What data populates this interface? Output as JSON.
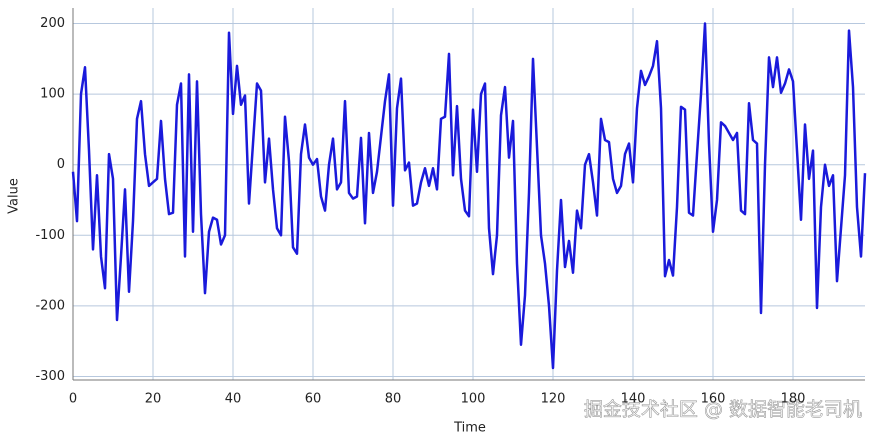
{
  "chart_data": {
    "type": "line",
    "xlabel": "Time",
    "ylabel": "Value",
    "x": [
      0,
      1,
      2,
      3,
      4,
      5,
      6,
      7,
      8,
      9,
      10,
      11,
      12,
      13,
      14,
      15,
      16,
      17,
      18,
      19,
      20,
      21,
      22,
      23,
      24,
      25,
      26,
      27,
      28,
      29,
      30,
      31,
      32,
      33,
      34,
      35,
      36,
      37,
      38,
      39,
      40,
      41,
      42,
      43,
      44,
      45,
      46,
      47,
      48,
      49,
      50,
      51,
      52,
      53,
      54,
      55,
      56,
      57,
      58,
      59,
      60,
      61,
      62,
      63,
      64,
      65,
      66,
      67,
      68,
      69,
      70,
      71,
      72,
      73,
      74,
      75,
      76,
      77,
      78,
      79,
      80,
      81,
      82,
      83,
      84,
      85,
      86,
      87,
      88,
      89,
      90,
      91,
      92,
      93,
      94,
      95,
      96,
      97,
      98,
      99,
      100,
      101,
      102,
      103,
      104,
      105,
      106,
      107,
      108,
      109,
      110,
      111,
      112,
      113,
      114,
      115,
      116,
      117,
      118,
      119,
      120,
      121,
      122,
      123,
      124,
      125,
      126,
      127,
      128,
      129,
      130,
      131,
      132,
      133,
      134,
      135,
      136,
      137,
      138,
      139,
      140,
      141,
      142,
      143,
      144,
      145,
      146,
      147,
      148,
      149,
      150,
      151,
      152,
      153,
      154,
      155,
      156,
      157,
      158,
      159,
      160,
      161,
      162,
      163,
      164,
      165,
      166,
      167,
      168,
      169,
      170,
      171,
      172,
      173,
      174,
      175,
      176,
      177,
      178,
      179,
      180,
      181,
      182,
      183,
      184,
      185,
      186,
      187,
      188,
      189,
      190,
      191,
      192,
      193,
      194,
      195,
      196,
      197,
      198
    ],
    "series": [
      {
        "color": "#1a1adb",
        "values": [
          -10,
          -80,
          100,
          138,
          20,
          -120,
          -15,
          -130,
          -175,
          15,
          -20,
          -220,
          -130,
          -35,
          -180,
          -80,
          65,
          90,
          15,
          -30,
          -25,
          -20,
          62,
          -20,
          -70,
          -68,
          85,
          115,
          -130,
          128,
          -95,
          118,
          -70,
          -182,
          -95,
          -75,
          -78,
          -113,
          -100,
          187,
          72,
          140,
          85,
          98,
          -55,
          30,
          115,
          105,
          -25,
          37,
          -35,
          -90,
          -100,
          68,
          5,
          -117,
          -126,
          15,
          57,
          10,
          0,
          8,
          -45,
          -65,
          0,
          37,
          -35,
          -25,
          90,
          -40,
          -48,
          -45,
          38,
          -83,
          45,
          -40,
          -10,
          40,
          90,
          128,
          -58,
          80,
          122,
          -8,
          3,
          -58,
          -55,
          -25,
          -5,
          -30,
          -5,
          -35,
          65,
          68,
          157,
          -15,
          83,
          -20,
          -65,
          -73,
          78,
          -10,
          100,
          115,
          -90,
          -155,
          -100,
          70,
          110,
          10,
          62,
          -140,
          -255,
          -185,
          -40,
          150,
          25,
          -100,
          -140,
          -200,
          -288,
          -150,
          -50,
          -145,
          -108,
          -153,
          -65,
          -90,
          0,
          15,
          -25,
          -72,
          65,
          35,
          32,
          -20,
          -40,
          -30,
          15,
          30,
          -25,
          80,
          133,
          113,
          125,
          140,
          175,
          80,
          -158,
          -135,
          -157,
          -60,
          82,
          78,
          -68,
          -72,
          15,
          100,
          200,
          30,
          -95,
          -50,
          60,
          55,
          45,
          35,
          45,
          -65,
          -70,
          87,
          35,
          30,
          -210,
          0,
          152,
          110,
          152,
          102,
          115,
          135,
          118,
          20,
          -78,
          57,
          -20,
          20,
          -203,
          -60,
          0,
          -30,
          -15,
          -165,
          -90,
          -15,
          190,
          110,
          -60,
          -130,
          -12
        ]
      }
    ],
    "xlim": [
      0,
      198
    ],
    "ylim": [
      -305,
      222
    ],
    "xticks": [
      0,
      20,
      40,
      60,
      80,
      100,
      120,
      140,
      160,
      180
    ],
    "yticks": [
      -300,
      -200,
      -100,
      0,
      100,
      200
    ],
    "grid": true,
    "watermark": "掘金技术社区 @ 数据智能老司机"
  }
}
